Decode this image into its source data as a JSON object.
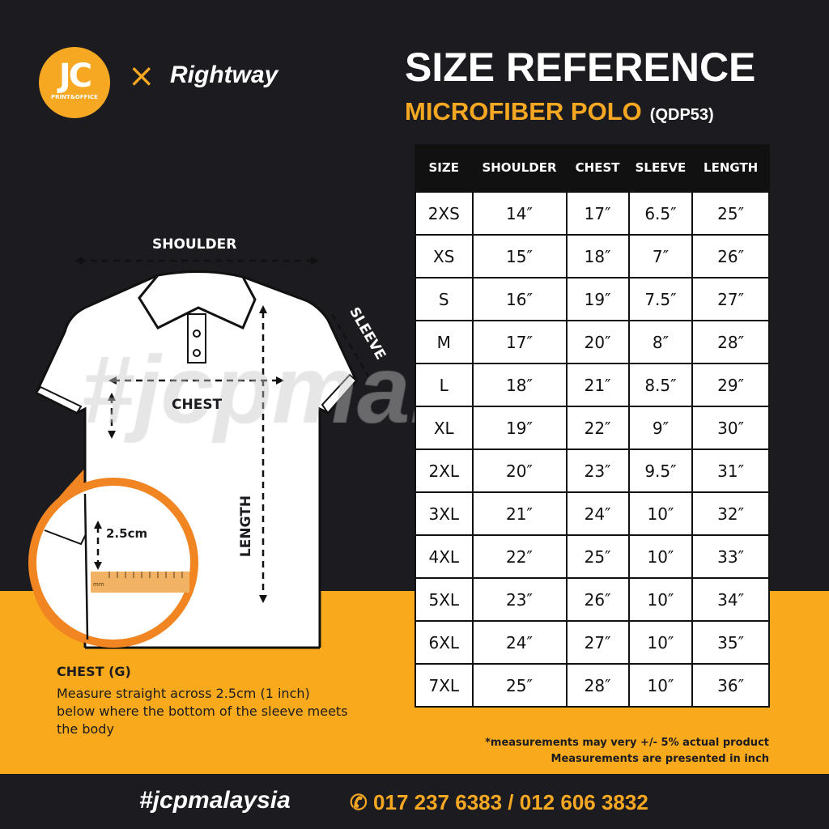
{
  "brand": {
    "logo_text": "JC",
    "logo_sub": "PRINT&OFFICE",
    "cross": "×",
    "partner": "Rightway"
  },
  "header": {
    "title": "SIZE REFERENCE",
    "subtitle": "MICROFIBER POLO",
    "code": "(QDP53)"
  },
  "diagram": {
    "shoulder": "SHOULDER",
    "sleeve": "SLEEVE",
    "chest": "CHEST",
    "length": "LENGTH",
    "offset": "2.5cm",
    "ruler_unit": "mm"
  },
  "watermark": "#jcpmalaysia",
  "chest_note": {
    "heading": "CHEST (G)",
    "text": "Measure straight across 2.5cm (1 inch) below where the bottom of the sleeve meets the body"
  },
  "table": {
    "headers": [
      "SIZE",
      "SHOULDER",
      "CHEST",
      "SLEEVE",
      "LENGTH"
    ],
    "rows": [
      [
        "2XS",
        "14″",
        "17″",
        "6.5″",
        "25″"
      ],
      [
        "XS",
        "15″",
        "18″",
        "7″",
        "26″"
      ],
      [
        "S",
        "16″",
        "19″",
        "7.5″",
        "27″"
      ],
      [
        "M",
        "17″",
        "20″",
        "8″",
        "28″"
      ],
      [
        "L",
        "18″",
        "21″",
        "8.5″",
        "29″"
      ],
      [
        "XL",
        "19″",
        "22″",
        "9″",
        "30″"
      ],
      [
        "2XL",
        "20″",
        "23″",
        "9.5″",
        "31″"
      ],
      [
        "3XL",
        "21″",
        "24″",
        "10″",
        "32″"
      ],
      [
        "4XL",
        "22″",
        "25″",
        "10″",
        "33″"
      ],
      [
        "5XL",
        "23″",
        "26″",
        "10″",
        "34″"
      ],
      [
        "6XL",
        "24″",
        "27″",
        "10″",
        "35″"
      ],
      [
        "7XL",
        "25″",
        "28″",
        "10″",
        "36″"
      ]
    ]
  },
  "notes": [
    "*measurements may very +/- 5% actual product",
    "Measurements are presented in inch"
  ],
  "footer": {
    "hashtag": "#jcpmalaysia",
    "phone": "017 237 6383 / 012 606 3832",
    "phone_icon": "phone-icon"
  },
  "colors": {
    "background": "#1c1b20",
    "accent": "#f6a823",
    "band": "#f8aa1c",
    "circle": "#f08522"
  }
}
